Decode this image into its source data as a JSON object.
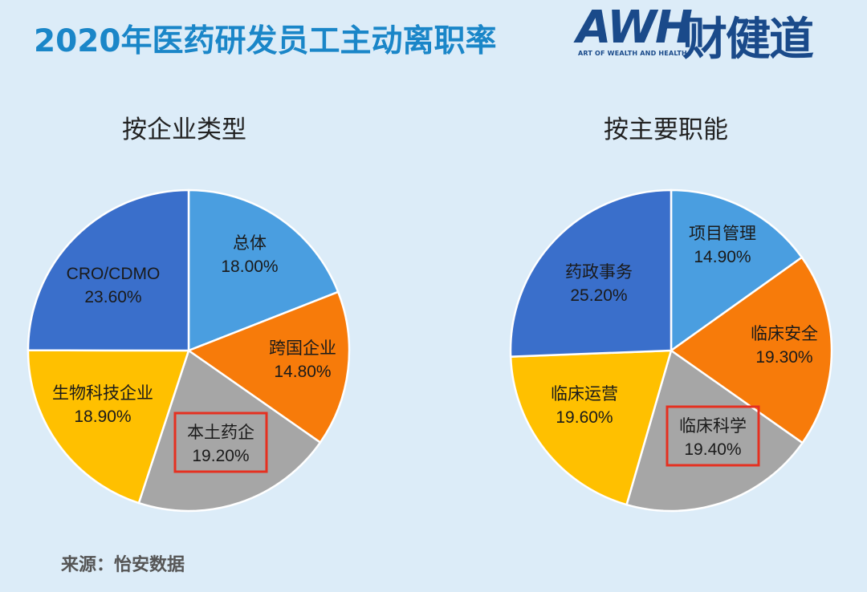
{
  "title": "2020年医药研发员工主动离职率",
  "logo": {
    "letters": "AWH",
    "chinese": "财健道",
    "tagline": "ART OF WEALTH AND HEALTH"
  },
  "source": "来源：怡安数据",
  "chart_data": [
    {
      "type": "pie",
      "title": "按企业类型",
      "slices": [
        {
          "label": "总体",
          "value": 18.0,
          "display": "18.00%",
          "color": "#4a9ee0",
          "highlighted": false
        },
        {
          "label": "跨国企业",
          "value": 14.8,
          "display": "14.80%",
          "color": "#f77b0a",
          "highlighted": false
        },
        {
          "label": "本土药企",
          "value": 19.2,
          "display": "19.20%",
          "color": "#a6a6a6",
          "highlighted": true
        },
        {
          "label": "生物科技企业",
          "value": 18.9,
          "display": "18.90%",
          "color": "#ffc000",
          "highlighted": false
        },
        {
          "label": "CRO/CDMO",
          "value": 23.6,
          "display": "23.60%",
          "color": "#3a6fcb",
          "highlighted": false
        }
      ]
    },
    {
      "type": "pie",
      "title": "按主要职能",
      "slices": [
        {
          "label": "项目管理",
          "value": 14.9,
          "display": "14.90%",
          "color": "#4a9ee0",
          "highlighted": false
        },
        {
          "label": "临床安全",
          "value": 19.3,
          "display": "19.30%",
          "color": "#f77b0a",
          "highlighted": false
        },
        {
          "label": "临床科学",
          "value": 19.4,
          "display": "19.40%",
          "color": "#a6a6a6",
          "highlighted": true
        },
        {
          "label": "临床运营",
          "value": 19.6,
          "display": "19.60%",
          "color": "#ffc000",
          "highlighted": false
        },
        {
          "label": "药政事务",
          "value": 25.2,
          "display": "25.20%",
          "color": "#3a6fcb",
          "highlighted": false
        }
      ]
    }
  ],
  "highlight_color": "#e53020"
}
